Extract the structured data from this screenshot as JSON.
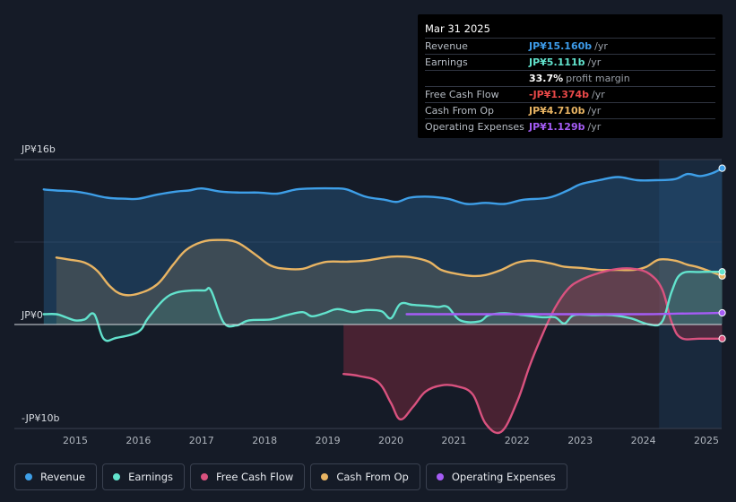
{
  "tooltip": {
    "date": "Mar 31 2025",
    "rows": [
      {
        "label": "Revenue",
        "value": "JP¥15.160b",
        "unit": "/yr",
        "color": "#3d9be9"
      },
      {
        "label": "Earnings",
        "value": "JP¥5.111b",
        "unit": "/yr",
        "color": "#62e3cd"
      },
      {
        "label": "",
        "value": "33.7%",
        "unit": "profit margin",
        "color": "#ffffff"
      },
      {
        "label": "Free Cash Flow",
        "value": "-JP¥1.374b",
        "unit": "/yr",
        "color": "#e84848"
      },
      {
        "label": "Cash From Op",
        "value": "JP¥4.710b",
        "unit": "/yr",
        "color": "#e8b463"
      },
      {
        "label": "Operating Expenses",
        "value": "JP¥1.129b",
        "unit": "/yr",
        "color": "#a55cf5"
      }
    ]
  },
  "legend": [
    {
      "label": "Revenue",
      "color": "#3e9fe8"
    },
    {
      "label": "Earnings",
      "color": "#62e3cd"
    },
    {
      "label": "Free Cash Flow",
      "color": "#d9527f"
    },
    {
      "label": "Cash From Op",
      "color": "#e8b463"
    },
    {
      "label": "Operating Expenses",
      "color": "#a55cf5"
    }
  ],
  "chart_data": {
    "type": "area",
    "currency": "JPY",
    "unit": "billions",
    "y_tick_labels": [
      "JP¥16b",
      "JP¥0",
      "-JP¥10b"
    ],
    "ylim": [
      -10,
      16
    ],
    "xlim": [
      2014.2,
      2025.45
    ],
    "x_tick_labels": [
      "2015",
      "2016",
      "2017",
      "2018",
      "2019",
      "2020",
      "2021",
      "2022",
      "2023",
      "2024",
      "2025"
    ],
    "highlight_start": 2024.25,
    "series": [
      {
        "name": "Revenue",
        "color": "#3e9fe8",
        "x": [
          2014.5,
          2014.7,
          2015.0,
          2015.2,
          2015.5,
          2015.8,
          2016.0,
          2016.3,
          2016.6,
          2016.8,
          2017.0,
          2017.3,
          2017.6,
          2017.9,
          2018.2,
          2018.5,
          2018.8,
          2019.1,
          2019.3,
          2019.6,
          2019.9,
          2020.1,
          2020.3,
          2020.6,
          2020.9,
          2021.2,
          2021.5,
          2021.8,
          2022.1,
          2022.5,
          2022.8,
          2023.0,
          2023.3,
          2023.6,
          2023.9,
          2024.2,
          2024.5,
          2024.7,
          2024.9,
          2025.1,
          2025.25
        ],
        "values": [
          13.1,
          13.0,
          12.9,
          12.7,
          12.3,
          12.2,
          12.2,
          12.6,
          12.9,
          13.0,
          13.2,
          12.9,
          12.8,
          12.8,
          12.7,
          13.1,
          13.2,
          13.2,
          13.1,
          12.4,
          12.1,
          11.9,
          12.3,
          12.4,
          12.2,
          11.7,
          11.8,
          11.7,
          12.1,
          12.3,
          13.0,
          13.6,
          14.0,
          14.3,
          14.0,
          14.0,
          14.1,
          14.6,
          14.4,
          14.7,
          15.16
        ]
      },
      {
        "name": "Earnings",
        "color": "#62e3cd",
        "x": [
          2014.5,
          2014.7,
          2014.85,
          2015.0,
          2015.15,
          2015.3,
          2015.45,
          2015.65,
          2016.0,
          2016.15,
          2016.4,
          2016.6,
          2016.85,
          2017.05,
          2017.15,
          2017.35,
          2017.55,
          2017.75,
          2018.1,
          2018.35,
          2018.6,
          2018.75,
          2018.95,
          2019.15,
          2019.4,
          2019.6,
          2019.85,
          2020.0,
          2020.15,
          2020.35,
          2020.6,
          2020.75,
          2020.9,
          2021.1,
          2021.4,
          2021.55,
          2021.8,
          2022.1,
          2022.4,
          2022.6,
          2022.75,
          2022.9,
          2023.2,
          2023.5,
          2023.8,
          2024.1,
          2024.3,
          2024.45,
          2024.6,
          2024.9,
          2025.25
        ],
        "values": [
          1.0,
          1.0,
          0.7,
          0.4,
          0.5,
          1.0,
          -1.4,
          -1.3,
          -0.7,
          0.6,
          2.4,
          3.1,
          3.3,
          3.3,
          3.3,
          0.2,
          -0.1,
          0.4,
          0.5,
          0.9,
          1.2,
          0.8,
          1.1,
          1.5,
          1.2,
          1.4,
          1.3,
          0.6,
          2.0,
          1.9,
          1.8,
          1.7,
          1.7,
          0.4,
          0.3,
          0.9,
          1.1,
          0.9,
          0.7,
          0.7,
          0.1,
          0.9,
          0.9,
          0.9,
          0.6,
          0.0,
          0.3,
          3.2,
          4.9,
          5.1,
          5.11
        ]
      },
      {
        "name": "Free Cash Flow",
        "color": "#d9527f",
        "x": [
          2019.25,
          2019.5,
          2019.8,
          2020.0,
          2020.15,
          2020.35,
          2020.55,
          2020.8,
          2021.05,
          2021.3,
          2021.5,
          2021.75,
          2022.0,
          2022.2,
          2022.4,
          2022.6,
          2022.8,
          2023.0,
          2023.3,
          2023.6,
          2023.85,
          2024.1,
          2024.3,
          2024.45,
          2024.6,
          2024.9,
          2025.25
        ],
        "values": [
          -4.8,
          -5.0,
          -5.6,
          -7.6,
          -9.2,
          -8.0,
          -6.5,
          -5.9,
          -6.0,
          -6.8,
          -9.6,
          -10.4,
          -7.5,
          -4.0,
          -1.0,
          1.6,
          3.4,
          4.3,
          5.0,
          5.4,
          5.4,
          4.9,
          3.4,
          0.2,
          -1.3,
          -1.37,
          -1.37
        ]
      },
      {
        "name": "Cash From Op",
        "color": "#e8b463",
        "x": [
          2014.7,
          2014.9,
          2015.15,
          2015.35,
          2015.55,
          2015.75,
          2016.0,
          2016.3,
          2016.55,
          2016.75,
          2017.0,
          2017.25,
          2017.55,
          2017.85,
          2018.1,
          2018.35,
          2018.6,
          2018.8,
          2019.0,
          2019.3,
          2019.6,
          2019.9,
          2020.1,
          2020.35,
          2020.6,
          2020.8,
          2021.05,
          2021.3,
          2021.5,
          2021.75,
          2022.0,
          2022.25,
          2022.55,
          2022.75,
          2023.0,
          2023.3,
          2023.6,
          2023.85,
          2024.05,
          2024.25,
          2024.5,
          2024.7,
          2024.9,
          2025.25
        ],
        "values": [
          6.5,
          6.3,
          6.0,
          5.2,
          3.7,
          2.9,
          3.0,
          3.9,
          5.8,
          7.2,
          8.0,
          8.2,
          8.0,
          6.8,
          5.7,
          5.4,
          5.4,
          5.8,
          6.1,
          6.1,
          6.2,
          6.5,
          6.6,
          6.5,
          6.1,
          5.3,
          4.9,
          4.7,
          4.8,
          5.3,
          6.0,
          6.2,
          5.9,
          5.6,
          5.5,
          5.3,
          5.3,
          5.3,
          5.6,
          6.3,
          6.2,
          5.8,
          5.5,
          4.71
        ]
      },
      {
        "name": "Operating Expenses",
        "color": "#a55cf5",
        "x": [
          2020.25,
          2021.0,
          2022.0,
          2023.0,
          2024.0,
          2024.5,
          2025.0,
          2025.25
        ],
        "values": [
          1.0,
          1.0,
          1.0,
          1.0,
          1.0,
          1.05,
          1.1,
          1.129
        ]
      }
    ]
  }
}
